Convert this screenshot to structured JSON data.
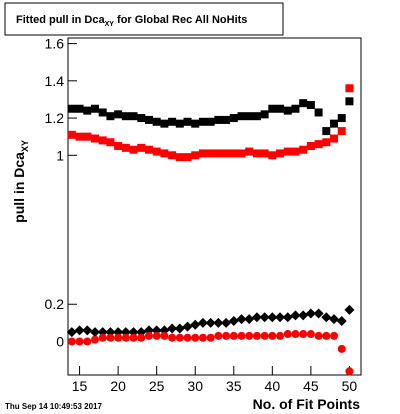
{
  "chart_data": {
    "type": "scatter",
    "title": "Fitted pull in Dca",
    "title_subscript": "XY",
    "title_rest": " for Global Rec All NoHits",
    "y_label": "pull in Dca",
    "y_label_subscript": "XY",
    "x_label": "No. of Fit Points",
    "x": [
      14,
      15,
      16,
      17,
      18,
      19,
      20,
      21,
      22,
      23,
      24,
      25,
      26,
      27,
      28,
      29,
      30,
      31,
      32,
      33,
      34,
      35,
      36,
      37,
      38,
      39,
      40,
      41,
      42,
      43,
      44,
      45,
      46,
      47,
      48,
      49,
      50
    ],
    "series": [
      {
        "color": "#000000",
        "marker": "square",
        "values": [
          1.25,
          1.25,
          1.24,
          1.25,
          1.23,
          1.21,
          1.22,
          1.21,
          1.21,
          1.2,
          1.19,
          1.18,
          1.17,
          1.18,
          1.17,
          1.18,
          1.17,
          1.18,
          1.18,
          1.19,
          1.19,
          1.2,
          1.21,
          1.21,
          1.21,
          1.22,
          1.25,
          1.25,
          1.24,
          1.25,
          1.28,
          1.27,
          1.23,
          1.13,
          1.17,
          1.2,
          1.29
        ]
      },
      {
        "color": "#ff0000",
        "marker": "square",
        "values": [
          1.11,
          1.1,
          1.1,
          1.09,
          1.08,
          1.07,
          1.05,
          1.04,
          1.03,
          1.04,
          1.03,
          1.02,
          1.01,
          1.0,
          0.99,
          0.99,
          1.0,
          1.01,
          1.01,
          1.01,
          1.01,
          1.01,
          1.01,
          1.02,
          1.01,
          1.01,
          1.0,
          1.01,
          1.02,
          1.02,
          1.03,
          1.05,
          1.06,
          1.07,
          1.09,
          1.13,
          1.36
        ]
      },
      {
        "color": "#000000",
        "marker": "diamond",
        "values": [
          0.05,
          0.06,
          0.06,
          0.05,
          0.05,
          0.05,
          0.05,
          0.05,
          0.05,
          0.05,
          0.06,
          0.06,
          0.06,
          0.07,
          0.07,
          0.08,
          0.09,
          0.1,
          0.1,
          0.1,
          0.1,
          0.11,
          0.12,
          0.12,
          0.13,
          0.13,
          0.13,
          0.13,
          0.13,
          0.14,
          0.14,
          0.15,
          0.15,
          0.13,
          0.12,
          0.11,
          0.17
        ]
      },
      {
        "color": "#ff0000",
        "marker": "circle",
        "values": [
          0,
          0,
          0,
          0.01,
          0.02,
          0.02,
          0.02,
          0.02,
          0.02,
          0.02,
          0.03,
          0.03,
          0.03,
          0.02,
          0.02,
          0.02,
          0.02,
          0.02,
          0.02,
          0.03,
          0.03,
          0.03,
          0.03,
          0.03,
          0.03,
          0.03,
          0.03,
          0.03,
          0.04,
          0.04,
          0.04,
          0.04,
          0.03,
          0.03,
          0.03,
          -0.04,
          -0.16
        ]
      }
    ],
    "xlim": [
      13.5,
      51.5
    ],
    "xticks": [
      15,
      20,
      25,
      30,
      35,
      40,
      45,
      50
    ],
    "ylim": [
      -0.18,
      1.63
    ],
    "yticks": [
      0,
      0.2,
      1,
      1.2,
      1.4,
      1.6
    ]
  },
  "footer": "Thu Sep 14 10:49:53 2017"
}
